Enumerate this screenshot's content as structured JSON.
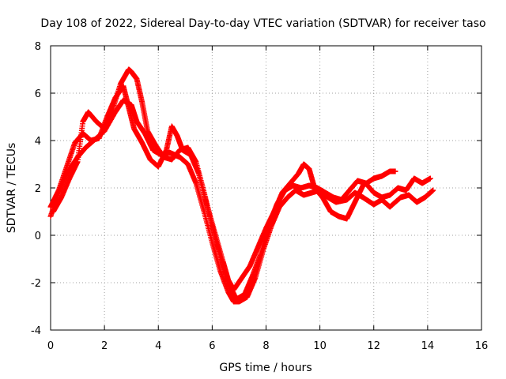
{
  "chart_data": {
    "type": "scatter",
    "title": "Day 108 of 2022, Sidereal Day-to-day VTEC variation (SDTVAR) for receiver taso",
    "xlabel": "GPS time / hours",
    "ylabel": "SDTVAR / TECUs",
    "xlim": [
      0,
      16
    ],
    "ylim": [
      -4,
      8
    ],
    "xticks": [
      "0",
      "2",
      "4",
      "6",
      "8",
      "10",
      "12",
      "14",
      "16"
    ],
    "yticks": [
      "-4",
      "-2",
      "0",
      "2",
      "4",
      "6",
      "8"
    ],
    "grid": true,
    "marker": "+",
    "color": "#ff0000",
    "series": [
      {
        "x": [
          0.0,
          0.3,
          0.6,
          1.0,
          1.3,
          1.6,
          2.0,
          2.4,
          2.7,
          3.0,
          3.2,
          3.5,
          3.8,
          4.1,
          4.4,
          4.6,
          4.8,
          5.1,
          5.4,
          5.7,
          6.0,
          6.3,
          6.6,
          6.8,
          7.0,
          7.3,
          7.6,
          7.9,
          8.2,
          8.5,
          8.8,
          9.1,
          9.4,
          9.7,
          10.0,
          10.3,
          10.6,
          11.0,
          11.3,
          11.6,
          12.0,
          12.3,
          12.6,
          13.0,
          13.3,
          13.6,
          13.9,
          14.2
        ],
        "y": [
          0.8,
          1.8,
          2.6,
          3.3,
          3.7,
          4.0,
          4.4,
          5.2,
          5.7,
          5.5,
          4.8,
          4.3,
          3.6,
          3.4,
          3.5,
          3.4,
          3.3,
          3.0,
          2.2,
          1.0,
          -0.3,
          -1.5,
          -2.4,
          -2.8,
          -2.8,
          -2.6,
          -1.8,
          -0.6,
          0.4,
          1.2,
          1.6,
          1.9,
          1.7,
          1.8,
          1.9,
          1.6,
          1.4,
          1.5,
          1.8,
          1.6,
          1.3,
          1.5,
          1.2,
          1.6,
          1.7,
          1.4,
          1.6,
          1.9
        ]
      },
      {
        "x": [
          0.0,
          0.3,
          0.6,
          0.9,
          1.2,
          1.5,
          1.8,
          2.1,
          2.4,
          2.7,
          2.9,
          3.1,
          3.4,
          3.7,
          4.0,
          4.3,
          4.5,
          4.7,
          4.9,
          5.2,
          5.5,
          5.8,
          6.1,
          6.4,
          6.6,
          6.8,
          7.1,
          7.4,
          7.7,
          8.0,
          8.3,
          8.6,
          8.9,
          9.2,
          9.4,
          9.6,
          9.8,
          10.1,
          10.4,
          10.7,
          11.0,
          11.3,
          11.6,
          12.0,
          12.3,
          12.6,
          12.8
        ],
        "y": [
          1.2,
          1.9,
          2.9,
          3.9,
          4.3,
          4.0,
          4.1,
          5.0,
          5.8,
          6.3,
          5.4,
          4.5,
          3.9,
          3.2,
          2.9,
          3.6,
          4.6,
          4.2,
          3.6,
          3.4,
          2.6,
          1.3,
          0.1,
          -1.1,
          -1.9,
          -2.3,
          -1.8,
          -1.3,
          -0.5,
          0.3,
          1.0,
          1.8,
          2.2,
          2.6,
          3.0,
          2.8,
          2.0,
          1.6,
          1.0,
          0.8,
          0.7,
          1.4,
          2.1,
          2.4,
          2.5,
          2.7,
          2.7
        ]
      },
      {
        "x": [
          0.1,
          0.4,
          0.7,
          1.0,
          1.2,
          1.4,
          1.7,
          2.0,
          2.3,
          2.6,
          2.9,
          3.0,
          3.2,
          3.4,
          3.6,
          3.9,
          4.2,
          4.5,
          4.8,
          5.1,
          5.4,
          5.7,
          6.0,
          6.3,
          6.6,
          6.9,
          7.2,
          7.5,
          7.8,
          8.1,
          8.4,
          8.7,
          9.0,
          9.3,
          9.6,
          9.9,
          10.2,
          10.5,
          10.8,
          11.1,
          11.4,
          11.7,
          12.0,
          12.3,
          12.6,
          12.9,
          13.2,
          13.5,
          13.8,
          14.1
        ],
        "y": [
          1.0,
          1.6,
          2.4,
          3.1,
          4.8,
          5.2,
          4.8,
          4.5,
          5.3,
          6.4,
          7.0,
          6.9,
          6.6,
          5.6,
          4.4,
          3.8,
          3.3,
          3.2,
          3.6,
          3.7,
          3.1,
          1.8,
          0.4,
          -0.9,
          -2.0,
          -2.7,
          -2.5,
          -1.7,
          -0.8,
          0.4,
          1.3,
          1.9,
          2.1,
          2.0,
          2.1,
          2.0,
          1.8,
          1.6,
          1.5,
          1.9,
          2.3,
          2.2,
          1.8,
          1.6,
          1.7,
          2.0,
          1.9,
          2.4,
          2.2,
          2.4
        ]
      }
    ]
  }
}
